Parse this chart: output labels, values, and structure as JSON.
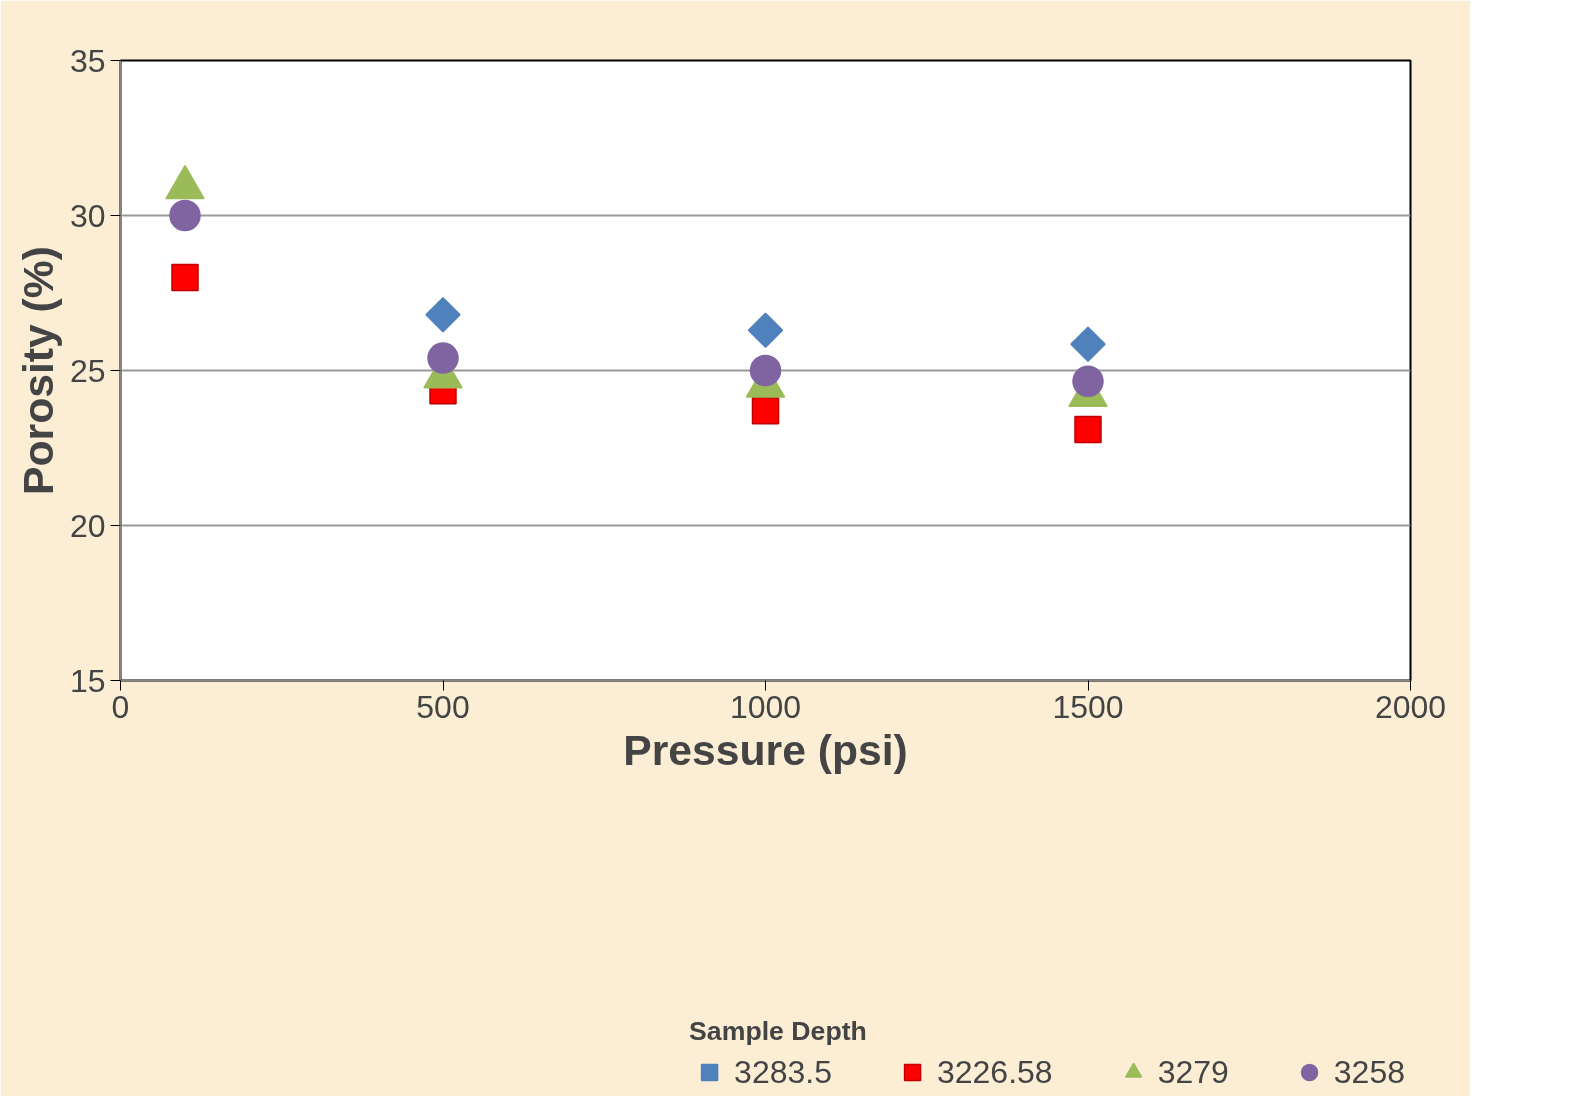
{
  "chart_data": {
    "type": "scatter",
    "xlabel": "Pressure (psi)",
    "ylabel": "Porosity (%)",
    "legend_title": "Sample Depth",
    "x": [
      100,
      500,
      1000,
      1500
    ],
    "series": [
      {
        "name": "3283.5",
        "color": "#4f81bd",
        "marker": "diamond",
        "values": [
          null,
          26.8,
          26.3,
          25.85
        ]
      },
      {
        "name": "3226.58",
        "color": "#ff0000",
        "marker": "square",
        "values": [
          28.0,
          24.35,
          23.7,
          23.1
        ]
      },
      {
        "name": "3279",
        "color": "#9bbb59",
        "marker": "triangle",
        "values": [
          30.9,
          24.8,
          24.5,
          24.2
        ]
      },
      {
        "name": "3258",
        "color": "#8064a2",
        "marker": "circle",
        "values": [
          30.0,
          25.4,
          25.0,
          24.65
        ]
      }
    ],
    "xlim": [
      0,
      2000
    ],
    "xticks": [
      0,
      500,
      1000,
      1500,
      2000
    ],
    "ylim": [
      15,
      35
    ],
    "yticks": [
      15,
      20,
      25,
      30,
      35
    ],
    "grid": "y",
    "legend": "bottom"
  }
}
